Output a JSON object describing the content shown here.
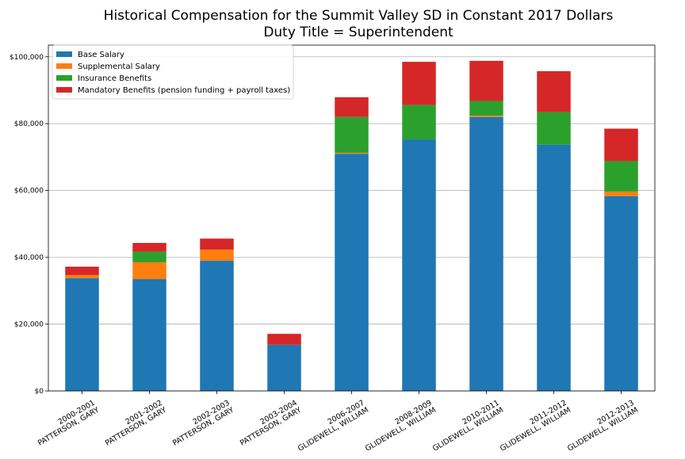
{
  "chart_data": {
    "type": "bar",
    "stacked": true,
    "title": [
      "Historical Compensation for the Summit Valley SD in Constant 2017 Dollars",
      "Duty Title = Superintendent"
    ],
    "xlabel": "",
    "ylabel": "",
    "ylim": [
      0,
      103500
    ],
    "yticks": [
      0,
      20000,
      40000,
      60000,
      80000,
      100000
    ],
    "ytick_labels": [
      "$0",
      "$20,000",
      "$40,000",
      "$60,000",
      "$80,000",
      "$100,000"
    ],
    "grid": "horizontal",
    "legend_position": "top-left",
    "categories": [
      [
        "2000-2001",
        "PATTERSON, GARY"
      ],
      [
        "2001-2002",
        "PATTERSON, GARY"
      ],
      [
        "2002-2003",
        "PATTERSON, GARY"
      ],
      [
        "2003-2004",
        "PATTERSON, GARY"
      ],
      [
        "2006-2007",
        "GLIDEWELL, WILLIAM"
      ],
      [
        "2008-2009",
        "GLIDEWELL, WILLIAM"
      ],
      [
        "2010-2011",
        "GLIDEWELL, WILLIAM"
      ],
      [
        "2011-2012",
        "GLIDEWELL, WILLIAM"
      ],
      [
        "2012-2013",
        "GLIDEWELL, WILLIAM"
      ]
    ],
    "series": [
      {
        "name": "Base Salary",
        "color": "#1f77b4",
        "values": [
          33800,
          33500,
          39000,
          13800,
          71000,
          75300,
          82000,
          73700,
          58300
        ]
      },
      {
        "name": "Supplemental Salary",
        "color": "#ff7f0e",
        "values": [
          900,
          5000,
          3300,
          0,
          300,
          0,
          400,
          0,
          1400
        ]
      },
      {
        "name": "Insurance Benefits",
        "color": "#2ca02c",
        "values": [
          0,
          3200,
          0,
          0,
          10700,
          10300,
          4400,
          9800,
          9100
        ]
      },
      {
        "name": "Mandatory Benefits (pension funding + payroll taxes)",
        "color": "#d62728",
        "values": [
          2500,
          2600,
          3300,
          3300,
          5900,
          12900,
          12000,
          12200,
          9700
        ]
      }
    ]
  }
}
